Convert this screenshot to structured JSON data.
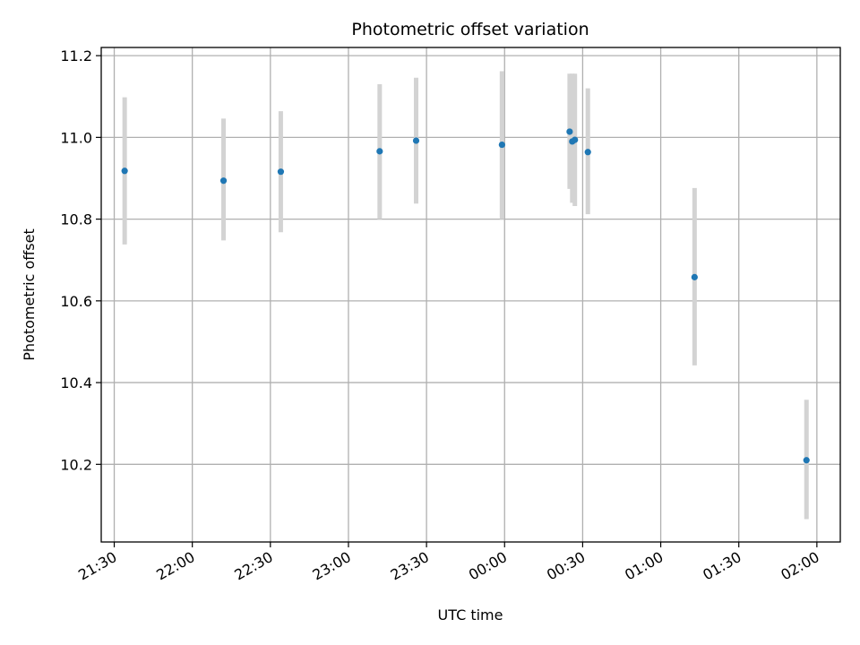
{
  "chart_data": {
    "type": "scatter",
    "title": "Photometric offset variation",
    "xlabel": "UTC time",
    "ylabel": "Photometric offset",
    "grid": true,
    "x_axis": {
      "kind": "time",
      "range": [
        "21:25",
        "02:09"
      ],
      "ticks": [
        "21:30",
        "22:00",
        "22:30",
        "23:00",
        "23:30",
        "00:00",
        "00:30",
        "01:00",
        "01:30",
        "02:00"
      ]
    },
    "y_axis": {
      "range": [
        10.01,
        11.22
      ],
      "ticks": [
        10.2,
        10.4,
        10.6,
        10.8,
        11.0,
        11.2
      ]
    },
    "points": [
      {
        "x": "21:34",
        "y": 10.918,
        "low": 10.738,
        "high": 11.098
      },
      {
        "x": "22:12",
        "y": 10.894,
        "low": 10.748,
        "high": 11.046
      },
      {
        "x": "22:34",
        "y": 10.916,
        "low": 10.768,
        "high": 11.064
      },
      {
        "x": "23:12",
        "y": 10.966,
        "low": 10.8,
        "high": 11.13
      },
      {
        "x": "23:26",
        "y": 10.992,
        "low": 10.838,
        "high": 11.146
      },
      {
        "x": "23:59",
        "y": 10.982,
        "low": 10.8,
        "high": 11.162
      },
      {
        "x": "00:25",
        "y": 11.014,
        "low": 10.874,
        "high": 11.156
      },
      {
        "x": "00:26",
        "y": 10.99,
        "low": 10.84,
        "high": 11.156
      },
      {
        "x": "00:27",
        "y": 10.994,
        "low": 10.832,
        "high": 11.156
      },
      {
        "x": "00:32",
        "y": 10.964,
        "low": 10.812,
        "high": 11.12
      },
      {
        "x": "01:13",
        "y": 10.658,
        "low": 10.442,
        "high": 10.876
      },
      {
        "x": "01:56",
        "y": 10.21,
        "low": 10.066,
        "high": 10.358
      }
    ]
  }
}
